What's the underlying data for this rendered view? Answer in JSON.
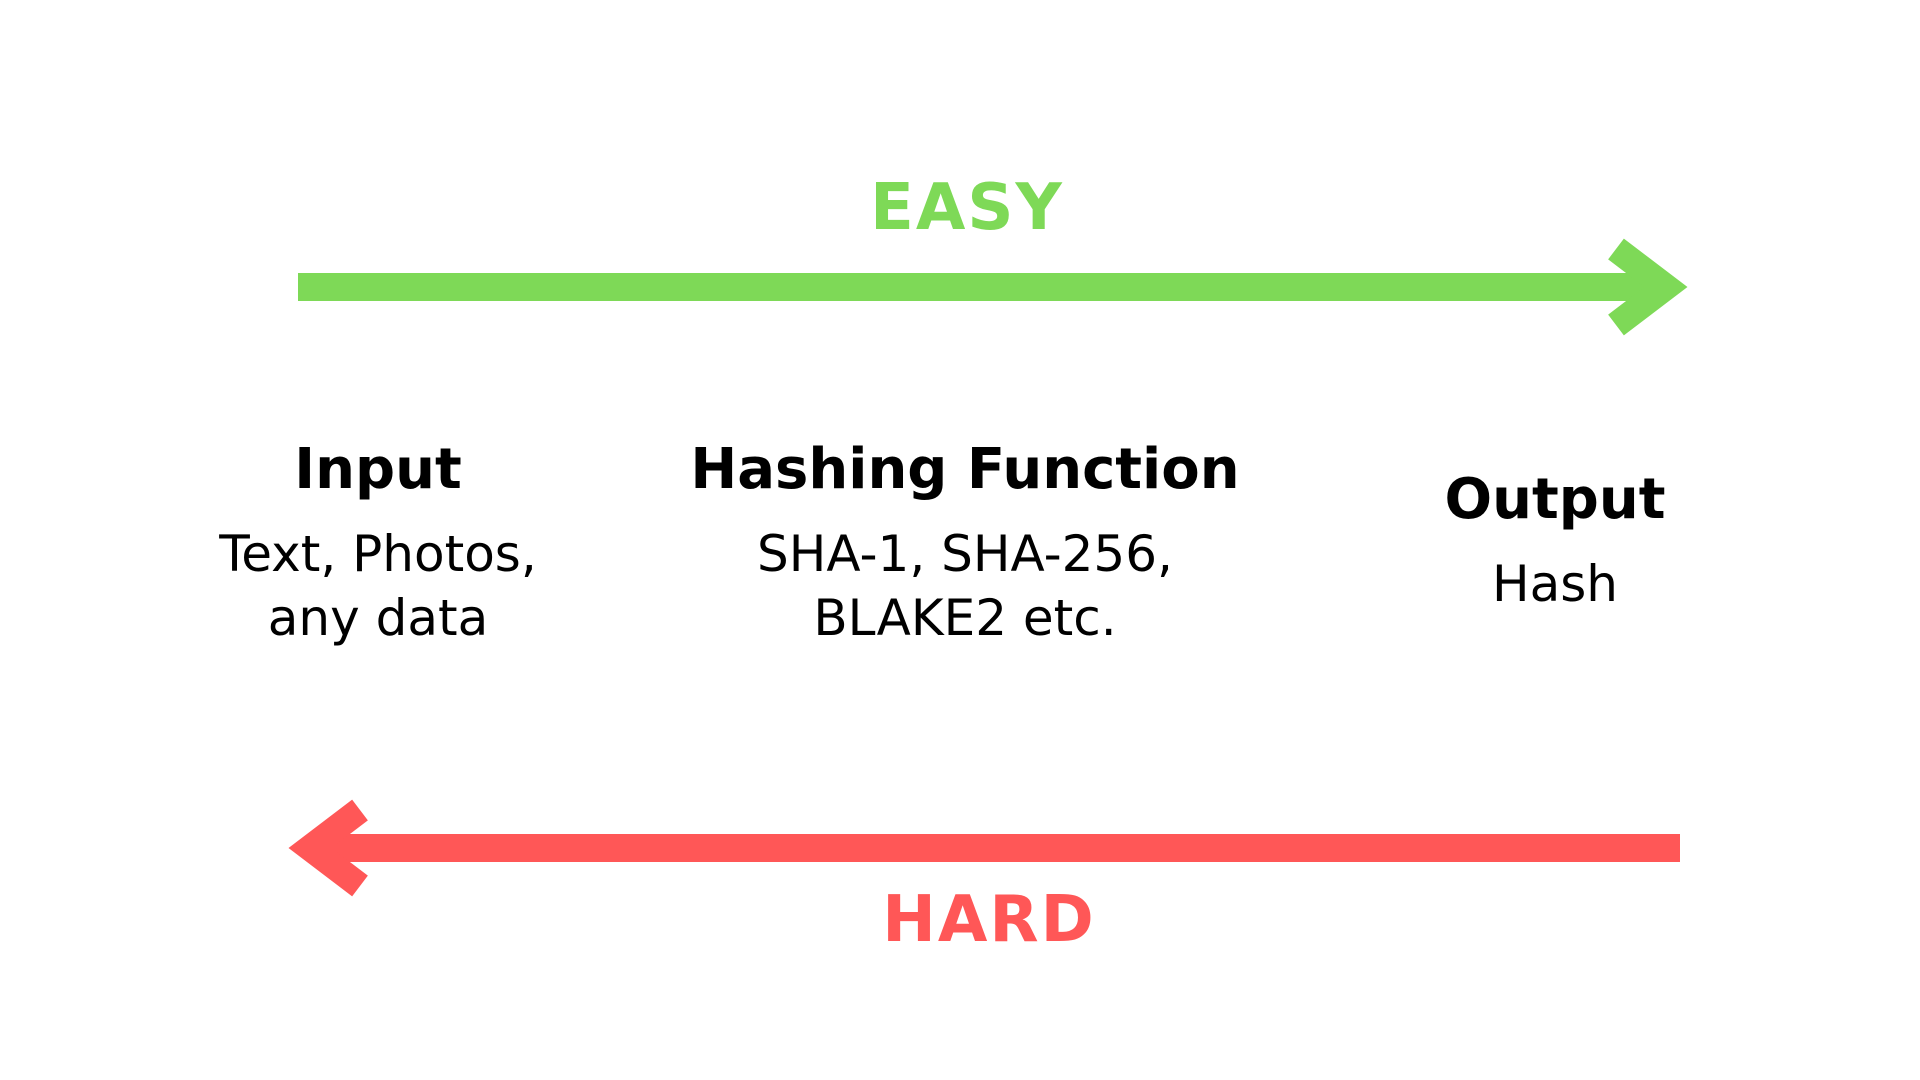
{
  "arrows": {
    "easy": {
      "label": "EASY",
      "color": "#7ed957",
      "direction": "right"
    },
    "hard": {
      "label": "HARD",
      "color": "#ff5757",
      "direction": "left"
    }
  },
  "stages": {
    "input": {
      "title": "Input",
      "detail": "Text, Photos,\nany data"
    },
    "hashing": {
      "title": "Hashing Function",
      "detail": "SHA-1, SHA-256,\nBLAKE2 etc."
    },
    "output": {
      "title": "Output",
      "detail": "Hash"
    }
  },
  "text_color": "#000000"
}
